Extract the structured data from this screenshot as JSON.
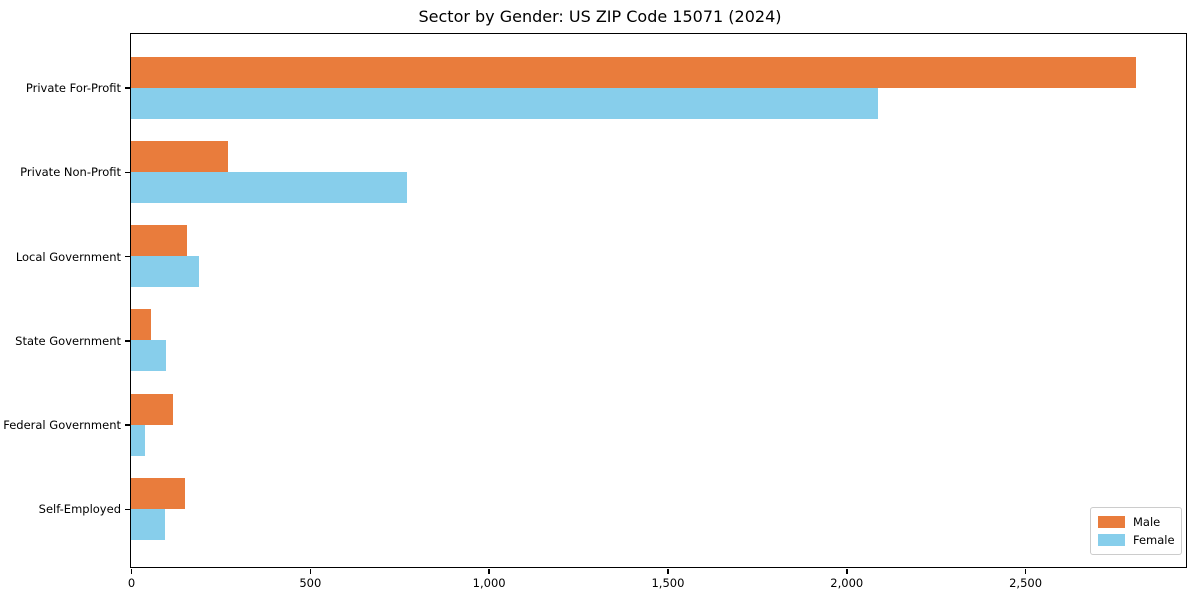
{
  "chart_data": {
    "type": "bar",
    "orientation": "horizontal",
    "title": "Sector by Gender: US ZIP Code 15071 (2024)",
    "categories": [
      "Private For-Profit",
      "Private Non-Profit",
      "Local Government",
      "State Government",
      "Federal Government",
      "Self-Employed"
    ],
    "series": [
      {
        "name": "Male",
        "color": "#E97C3C",
        "values": [
          2810,
          272,
          157,
          57,
          117,
          150
        ]
      },
      {
        "name": "Female",
        "color": "#87CEEB",
        "values": [
          2090,
          772,
          190,
          98,
          39,
          95
        ]
      }
    ],
    "xlabel": "",
    "ylabel": "",
    "xlim": [
      0,
      2950
    ],
    "x_ticks": [
      {
        "value": 0,
        "label": "0"
      },
      {
        "value": 500,
        "label": "500"
      },
      {
        "value": 1000,
        "label": "1,000"
      },
      {
        "value": 1500,
        "label": "1,500"
      },
      {
        "value": 2000,
        "label": "2,000"
      },
      {
        "value": 2500,
        "label": "2,500"
      }
    ],
    "legend": {
      "position": "lower right",
      "entries": [
        "Male",
        "Female"
      ]
    },
    "grid": false
  },
  "colors": {
    "background": "#ffffff",
    "spine": "#000000",
    "text": "#000000",
    "legend_border": "#cccccc"
  }
}
